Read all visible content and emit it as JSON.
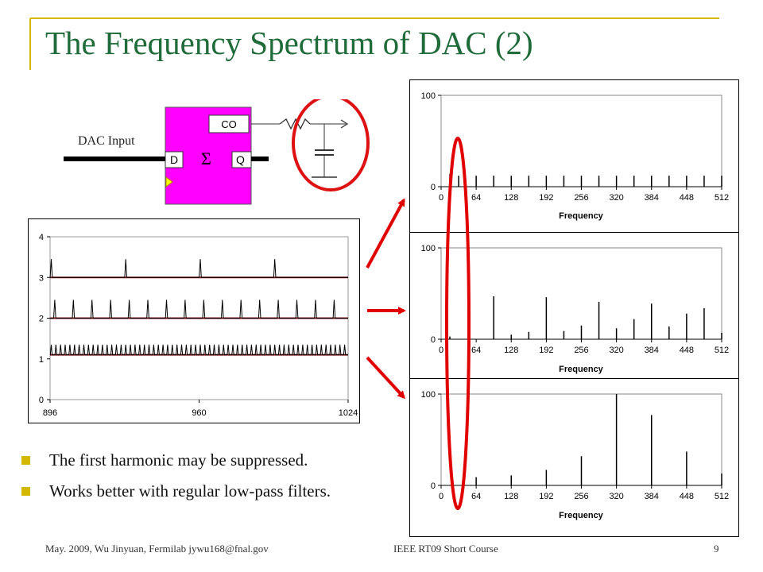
{
  "slide": {
    "title": "The Frequency Spectrum of DAC (2)",
    "bullets": [
      "The first harmonic may be suppressed.",
      "Works better with regular low-pass filters."
    ],
    "footer": {
      "left": "May. 2009, Wu Jinyuan, Fermilab jywu168@fnal.gov",
      "center": "IEEE RT09 Short Course",
      "page": "9"
    },
    "colors": {
      "title": "#1f6b3a",
      "accent_line": "#d4b800",
      "bullet": "#d4b800",
      "arrow": "#e00000",
      "block": "#ff00ff"
    }
  },
  "circuit": {
    "input_label": "DAC Input",
    "pin_d": "D",
    "pin_q": "Q",
    "pin_co": "CO",
    "sigma": "Σ"
  },
  "chart_data": [
    {
      "type": "line",
      "name": "Time-domain waveforms",
      "x_ticks": [
        "896",
        "960",
        "1024"
      ],
      "y_ticks": [
        "0",
        "1",
        "2",
        "3",
        "4"
      ],
      "xlim": [
        896,
        1024
      ],
      "ylim": [
        0,
        4
      ],
      "series": [
        {
          "baseline": 3.0,
          "peak": 3.45,
          "period": 32,
          "offset": 896.5
        },
        {
          "baseline": 2.0,
          "peak": 2.45,
          "period": 8,
          "offset": 898
        },
        {
          "baseline": 1.1,
          "peak": 1.35,
          "period": 2,
          "offset": 896.5
        }
      ]
    },
    {
      "type": "bar",
      "name": "Spectrum 1",
      "xlabel": "Frequency",
      "x_ticks": [
        "0",
        "64",
        "128",
        "192",
        "256",
        "320",
        "384",
        "448",
        "512"
      ],
      "y_ticks": [
        "0",
        "100"
      ],
      "xlim": [
        0,
        512
      ],
      "ylim": [
        0,
        100
      ],
      "x": [
        16,
        32,
        64,
        96,
        128,
        160,
        192,
        224,
        256,
        288,
        320,
        352,
        384,
        416,
        448,
        480,
        512
      ],
      "values": [
        14,
        12,
        12,
        12,
        12,
        12,
        12,
        12,
        12,
        12,
        12,
        12,
        12,
        12,
        12,
        12,
        12
      ]
    },
    {
      "type": "bar",
      "name": "Spectrum 2",
      "xlabel": "Frequency",
      "x_ticks": [
        "0",
        "64",
        "128",
        "192",
        "256",
        "320",
        "384",
        "448",
        "512"
      ],
      "y_ticks": [
        "0",
        "100"
      ],
      "xlim": [
        0,
        512
      ],
      "ylim": [
        0,
        100
      ],
      "x": [
        16,
        96,
        128,
        160,
        192,
        224,
        256,
        288,
        320,
        352,
        384,
        416,
        448,
        480,
        512
      ],
      "values": [
        3,
        47,
        5,
        8,
        46,
        9,
        15,
        41,
        12,
        22,
        39,
        14,
        28,
        34,
        7
      ]
    },
    {
      "type": "bar",
      "name": "Spectrum 3",
      "xlabel": "Frequency",
      "x_ticks": [
        "0",
        "64",
        "128",
        "192",
        "256",
        "320",
        "384",
        "448",
        "512"
      ],
      "y_ticks": [
        "0",
        "100"
      ],
      "xlim": [
        0,
        512
      ],
      "ylim": [
        0,
        100
      ],
      "x": [
        64,
        128,
        192,
        256,
        320,
        384,
        448,
        512
      ],
      "values": [
        9,
        11,
        17,
        32,
        100,
        77,
        37,
        13
      ]
    }
  ]
}
